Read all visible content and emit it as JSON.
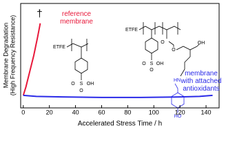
{
  "chart_data": {
    "type": "line",
    "x_label": "Accelerated Stress Time / h",
    "y_label": [
      "Membrane  Degradation",
      "(High Frequency Resistance)"
    ],
    "xlim": [
      -2,
      150
    ],
    "xticks": [
      0,
      20,
      40,
      60,
      80,
      100,
      120,
      140
    ],
    "ylim": [
      0,
      1
    ],
    "series": [
      {
        "name": "reference membrane",
        "color": "#e8183a",
        "x": [
          0,
          2,
          5,
          8,
          11,
          13
        ],
        "values": [
          0.12,
          0.2,
          0.35,
          0.5,
          0.68,
          0.81
        ]
      },
      {
        "name": "membrane with attached antioxidants",
        "color": "#2a2ae8",
        "x": [
          0,
          10,
          30,
          60,
          90,
          120,
          135,
          145
        ],
        "values": [
          0.12,
          0.11,
          0.105,
          0.1,
          0.1,
          0.105,
          0.11,
          0.12
        ]
      }
    ],
    "annotations": [
      "†"
    ]
  },
  "structures": {
    "reference": {
      "labels": [
        "ETFE",
        "S",
        "O",
        "O",
        "OH"
      ]
    },
    "antioxidant": {
      "labels": [
        "ETFE",
        "S",
        "O",
        "O",
        "OH",
        "O",
        "O",
        "OH",
        "HN",
        "HO"
      ]
    }
  }
}
